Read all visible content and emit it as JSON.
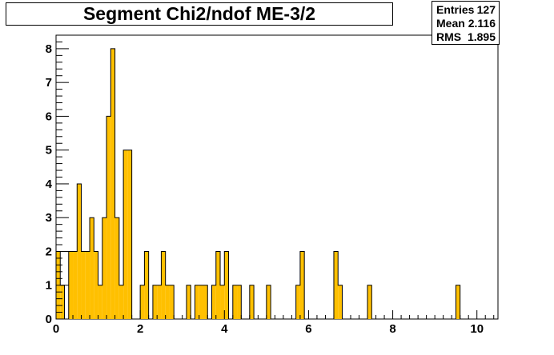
{
  "chart_data": {
    "type": "bar",
    "title": "Segment Chi2/ndof ME-3/2",
    "xlabel": "",
    "ylabel": "",
    "xlim": [
      0,
      10.5
    ],
    "ylim": [
      0,
      8.4
    ],
    "bin_width": 0.1,
    "bin_start": 0,
    "values": [
      2,
      1,
      0,
      2,
      2,
      4,
      2,
      2,
      3,
      2,
      1,
      3,
      6,
      8,
      3,
      1,
      5,
      5,
      0,
      0,
      1,
      2,
      0,
      1,
      1,
      2,
      1,
      1,
      0,
      0,
      0,
      1,
      0,
      1,
      1,
      1,
      0,
      1,
      2,
      1,
      2,
      0,
      1,
      1,
      0,
      0,
      1,
      0,
      0,
      0,
      1,
      0,
      0,
      0,
      0,
      0,
      0,
      1,
      2,
      0,
      0,
      0,
      0,
      0,
      0,
      0,
      2,
      1,
      0,
      0,
      0,
      0,
      0,
      0,
      1,
      0,
      0,
      0,
      0,
      0,
      0,
      0,
      0,
      0,
      0,
      0,
      0,
      0,
      0,
      0,
      0,
      0,
      0,
      0,
      0,
      1,
      0,
      0,
      0,
      0,
      0,
      0,
      0,
      0,
      0
    ],
    "x_ticks": [
      0,
      2,
      4,
      6,
      8,
      10
    ],
    "x_tick_labels": [
      "0",
      "2",
      "4",
      "6",
      "8",
      "10"
    ],
    "y_ticks": [
      0,
      1,
      2,
      3,
      4,
      5,
      6,
      7,
      8
    ],
    "y_tick_labels": [
      "0",
      "1",
      "2",
      "3",
      "4",
      "5",
      "6",
      "7",
      "8"
    ],
    "bar_fill": "#ffc000",
    "bar_stroke": "#000000",
    "grid": false
  },
  "stats": {
    "entries_label": "Entries",
    "entries_value": "127",
    "mean_label": "Mean",
    "mean_value": "2.116",
    "rms_label": "RMS",
    "rms_value": "1.895"
  }
}
